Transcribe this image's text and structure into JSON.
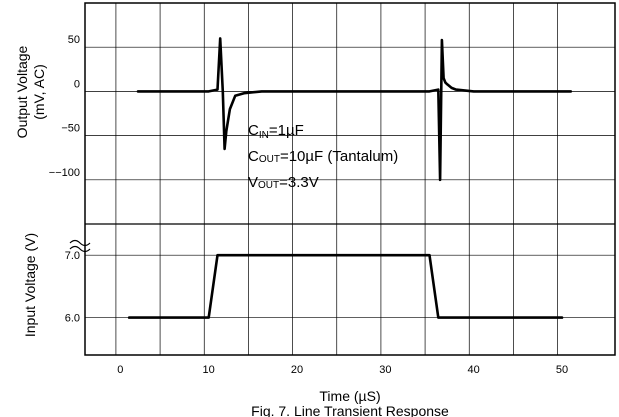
{
  "chart_data": {
    "type": "line",
    "xlabel": "Time (µS)",
    "caption": "Fig. 7.   Line Transient Response",
    "x_ticks": [
      "0",
      "10",
      "20",
      "30",
      "40",
      "50"
    ],
    "x_tick_values": [
      0,
      10,
      20,
      30,
      40,
      50
    ],
    "xlim": [
      -4,
      56
    ],
    "grid": true,
    "top_panel": {
      "ylabel_line1": "Output Voltage",
      "ylabel_line2": "(mV, AC)",
      "y_ticks": [
        "50",
        "0",
        "−50",
        "−−100"
      ],
      "y_tick_values": [
        50,
        0,
        -50,
        -100
      ],
      "ylim": [
        -150,
        100
      ],
      "series": [
        {
          "x": [
            2,
            5,
            8,
            10,
            11,
            11.3,
            11.6,
            11.8,
            12,
            12.4,
            13,
            14,
            16,
            20,
            25,
            30,
            33,
            35,
            36,
            36.2,
            36.4,
            36.6,
            36.8,
            37,
            37.5,
            38,
            40,
            45,
            51
          ],
          "y": [
            0,
            0,
            0,
            0,
            2,
            60,
            0,
            -65,
            -45,
            -20,
            -5,
            -2,
            0,
            0,
            0,
            0,
            0,
            0,
            2,
            -100,
            58,
            15,
            10,
            8,
            4,
            2,
            0,
            0,
            0
          ]
        }
      ]
    },
    "bottom_panel": {
      "ylabel": "Input Voltage (V)",
      "y_ticks": [
        "7.0",
        "6.0"
      ],
      "y_tick_values": [
        7.0,
        6.0
      ],
      "ylim": [
        5.4,
        7.5
      ],
      "series": [
        {
          "x": [
            1,
            10,
            11,
            35,
            36,
            50
          ],
          "y": [
            6.0,
            6.0,
            7.0,
            7.0,
            6.0,
            6.0
          ]
        }
      ]
    },
    "annotations": [
      {
        "main": "C",
        "sub": "IN",
        "rest": "=1µF"
      },
      {
        "main": "C",
        "sub": "OUT",
        "rest": "=10µF (Tantalum)"
      },
      {
        "main": "V",
        "sub": "OUT",
        "rest": "=3.3V"
      }
    ]
  }
}
